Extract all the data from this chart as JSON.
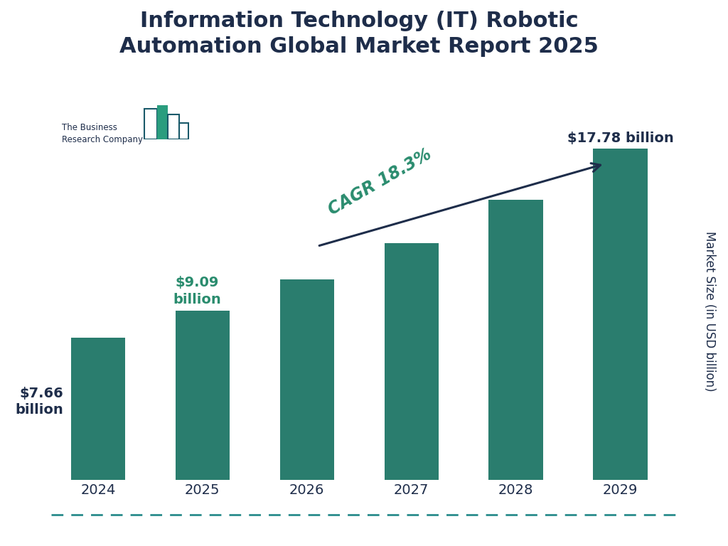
{
  "title": "Information Technology (IT) Robotic\nAutomation Global Market Report 2025",
  "years": [
    "2024",
    "2025",
    "2026",
    "2027",
    "2028",
    "2029"
  ],
  "values": [
    7.66,
    9.09,
    10.76,
    12.73,
    15.05,
    17.78
  ],
  "bar_color": "#2a7d6e",
  "background_color": "#ffffff",
  "ylabel": "Market Size (in USD billion)",
  "title_color": "#1e2d4a",
  "label_2024_color": "#1e2d4a",
  "label_2025_color": "#2a8c6e",
  "label_2029_color": "#1e2d4a",
  "cagr_text": "CAGR 18.3%",
  "cagr_color": "#2a8c6e",
  "arrow_color": "#1e2d4a",
  "ylim": [
    0,
    22
  ],
  "bottom_line_color": "#2a8c8c",
  "logo_dark": "#1a5a6a",
  "logo_light": "#2a9d7e"
}
